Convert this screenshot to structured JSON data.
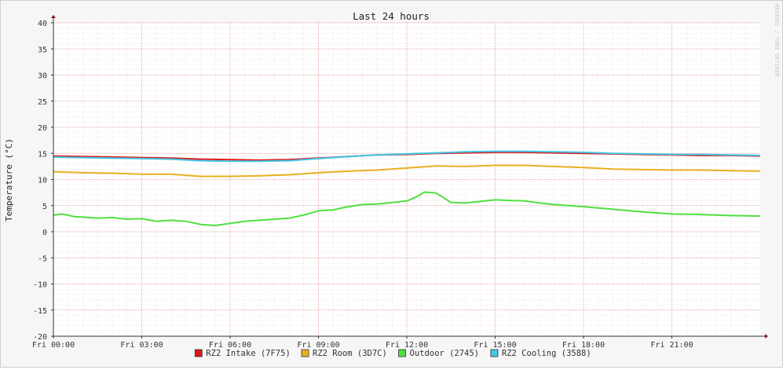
{
  "chart_data": {
    "type": "line",
    "title": "Last 24 hours",
    "ylabel": "Temperature (°C)",
    "xlabel": "",
    "watermark": "RRDTOOL / TOBI OETIKER",
    "ylim": [
      -20,
      40
    ],
    "y_ticks": [
      40,
      35,
      30,
      25,
      20,
      15,
      10,
      5,
      0,
      -5,
      -10,
      -15,
      -20
    ],
    "y_tick_labels": [
      "40",
      "35",
      "30",
      "25",
      "20",
      "15",
      "10",
      "5",
      "0",
      "-5",
      "-10",
      "-15",
      "-20"
    ],
    "x_range_hours": [
      0,
      24
    ],
    "x_ticks": [
      {
        "hour": 0,
        "label": "Fri 00:00"
      },
      {
        "hour": 3,
        "label": "Fri 03:00"
      },
      {
        "hour": 6,
        "label": "Fri 06:00"
      },
      {
        "hour": 9,
        "label": "Fri 09:00"
      },
      {
        "hour": 12,
        "label": "Fri 12:00"
      },
      {
        "hour": 15,
        "label": "Fri 15:00"
      },
      {
        "hour": 18,
        "label": "Fri 18:00"
      },
      {
        "hour": 21,
        "label": "Fri 21:00"
      }
    ],
    "grid": true,
    "legend_position": "bottom",
    "series": [
      {
        "name": "RZ2 Intake (7F75)",
        "color": "#e01818",
        "hours": [
          0,
          1,
          2,
          3,
          4,
          5,
          6,
          7,
          8,
          9,
          10,
          11,
          12,
          13,
          14,
          15,
          16,
          17,
          18,
          19,
          20,
          21,
          22,
          23,
          24
        ],
        "values": [
          14.5,
          14.4,
          14.3,
          14.2,
          14.1,
          13.9,
          13.8,
          13.7,
          13.8,
          14.1,
          14.4,
          14.7,
          14.8,
          15.0,
          15.1,
          15.2,
          15.2,
          15.1,
          15.0,
          14.9,
          14.8,
          14.7,
          14.6,
          14.6,
          14.5
        ]
      },
      {
        "name": "RZ2 Room (3D7C)",
        "color": "#e8b020",
        "hours": [
          0,
          1,
          2,
          3,
          4,
          5,
          6,
          7,
          8,
          9,
          10,
          11,
          12,
          13,
          14,
          15,
          16,
          17,
          18,
          19,
          20,
          21,
          22,
          23,
          24
        ],
        "values": [
          11.5,
          11.3,
          11.2,
          11.0,
          11.0,
          10.6,
          10.6,
          10.7,
          10.9,
          11.3,
          11.6,
          11.8,
          12.2,
          12.6,
          12.5,
          12.7,
          12.7,
          12.5,
          12.3,
          12.0,
          11.9,
          11.8,
          11.8,
          11.7,
          11.6
        ]
      },
      {
        "name": "Outdoor (2745)",
        "color": "#50e040",
        "hours": [
          0,
          0.3,
          0.7,
          1,
          1.5,
          2,
          2.5,
          3,
          3.5,
          4,
          4.5,
          5,
          5.5,
          6,
          6.5,
          7,
          7.5,
          8,
          8.5,
          9,
          9.5,
          10,
          10.5,
          11,
          11.5,
          12,
          12.3,
          12.6,
          13,
          13.5,
          14,
          14.5,
          15,
          15.5,
          16,
          16.5,
          17,
          17.5,
          18,
          19,
          20,
          21,
          22,
          23,
          24
        ],
        "values": [
          3.2,
          3.4,
          2.9,
          2.8,
          2.6,
          2.7,
          2.4,
          2.5,
          2.0,
          2.2,
          2.0,
          1.4,
          1.2,
          1.6,
          2.0,
          2.2,
          2.4,
          2.6,
          3.2,
          4.0,
          4.2,
          4.8,
          5.2,
          5.3,
          5.6,
          5.9,
          6.6,
          7.6,
          7.4,
          5.6,
          5.5,
          5.8,
          6.1,
          6.0,
          5.9,
          5.5,
          5.2,
          5.0,
          4.8,
          4.3,
          3.8,
          3.4,
          3.3,
          3.1,
          3.0
        ]
      },
      {
        "name": "RZ2 Cooling (3588)",
        "color": "#40c8e8",
        "hours": [
          0,
          1,
          2,
          3,
          4,
          5,
          6,
          7,
          8,
          9,
          10,
          11,
          12,
          13,
          14,
          15,
          16,
          17,
          18,
          19,
          20,
          21,
          22,
          23,
          24
        ],
        "values": [
          14.3,
          14.2,
          14.1,
          14.0,
          13.9,
          13.6,
          13.5,
          13.5,
          13.6,
          14.0,
          14.4,
          14.7,
          14.9,
          15.1,
          15.3,
          15.4,
          15.4,
          15.3,
          15.2,
          15.0,
          14.9,
          14.8,
          14.8,
          14.7,
          14.6
        ]
      }
    ]
  }
}
